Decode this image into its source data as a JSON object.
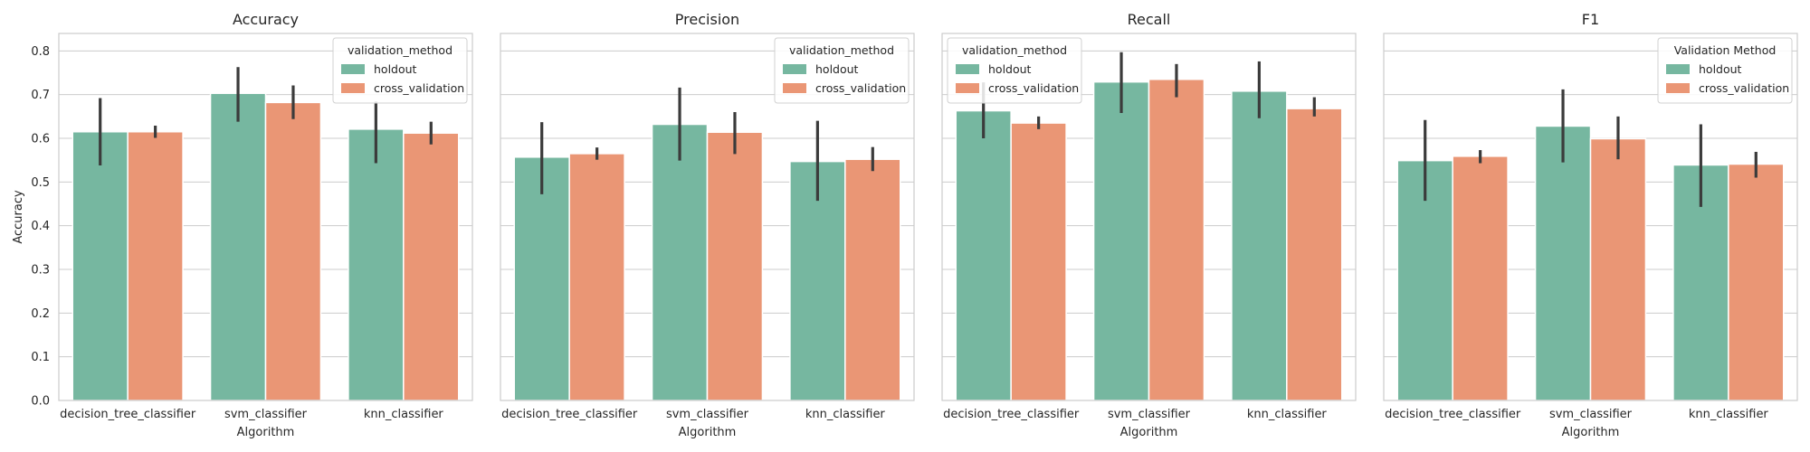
{
  "chart_data": [
    {
      "type": "bar",
      "title": "Accuracy",
      "xlabel": "Algorithm",
      "ylabel": "Accuracy",
      "categories": [
        "decision_tree_classifier",
        "svm_classifier",
        "knn_classifier"
      ],
      "ylim": [
        0,
        0.84
      ],
      "yticks": [
        "0.0",
        "0.1",
        "0.2",
        "0.3",
        "0.4",
        "0.5",
        "0.6",
        "0.7",
        "0.8"
      ],
      "grid": true,
      "legend": {
        "title": "validation_method",
        "placement": "top-right"
      },
      "series": [
        {
          "name": "holdout",
          "color": "#76b7a0",
          "values": [
            0.615,
            0.703,
            0.621
          ],
          "err_low": [
            0.538,
            0.638,
            0.543
          ],
          "err_high": [
            0.692,
            0.763,
            0.684
          ]
        },
        {
          "name": "cross_validation",
          "color": "#ea9675",
          "values": [
            0.615,
            0.682,
            0.612
          ],
          "err_low": [
            0.601,
            0.644,
            0.586
          ],
          "err_high": [
            0.629,
            0.721,
            0.638
          ]
        }
      ]
    },
    {
      "type": "bar",
      "title": "Precision",
      "xlabel": "Algorithm",
      "ylabel": "",
      "categories": [
        "decision_tree_classifier",
        "svm_classifier",
        "knn_classifier"
      ],
      "ylim": [
        0,
        0.84
      ],
      "grid": true,
      "legend": {
        "title": "validation_method",
        "placement": "top-right"
      },
      "series": [
        {
          "name": "holdout",
          "color": "#76b7a0",
          "values": [
            0.557,
            0.632,
            0.547
          ],
          "err_low": [
            0.472,
            0.549,
            0.457
          ],
          "err_high": [
            0.637,
            0.716,
            0.64
          ]
        },
        {
          "name": "cross_validation",
          "color": "#ea9675",
          "values": [
            0.565,
            0.614,
            0.552
          ],
          "err_low": [
            0.551,
            0.564,
            0.525
          ],
          "err_high": [
            0.579,
            0.66,
            0.58
          ]
        }
      ]
    },
    {
      "type": "bar",
      "title": "Recall",
      "xlabel": "Algorithm",
      "ylabel": "",
      "categories": [
        "decision_tree_classifier",
        "svm_classifier",
        "knn_classifier"
      ],
      "ylim": [
        0,
        0.84
      ],
      "grid": true,
      "legend": {
        "title": "validation_method",
        "placement": "top-left"
      },
      "series": [
        {
          "name": "holdout",
          "color": "#76b7a0",
          "values": [
            0.663,
            0.729,
            0.708
          ],
          "err_low": [
            0.6,
            0.658,
            0.646
          ],
          "err_high": [
            0.728,
            0.797,
            0.776
          ]
        },
        {
          "name": "cross_validation",
          "color": "#ea9675",
          "values": [
            0.635,
            0.735,
            0.668
          ],
          "err_low": [
            0.621,
            0.694,
            0.65
          ],
          "err_high": [
            0.65,
            0.77,
            0.694
          ]
        }
      ]
    },
    {
      "type": "bar",
      "title": "F1",
      "xlabel": "Algorithm",
      "ylabel": "",
      "categories": [
        "decision_tree_classifier",
        "svm_classifier",
        "knn_classifier"
      ],
      "ylim": [
        0,
        0.84
      ],
      "grid": true,
      "legend": {
        "title": "Validation Method",
        "placement": "top-right"
      },
      "series": [
        {
          "name": "holdout",
          "color": "#76b7a0",
          "values": [
            0.549,
            0.628,
            0.539
          ],
          "err_low": [
            0.457,
            0.545,
            0.443
          ],
          "err_high": [
            0.642,
            0.712,
            0.632
          ]
        },
        {
          "name": "cross_validation",
          "color": "#ea9675",
          "values": [
            0.559,
            0.599,
            0.541
          ],
          "err_low": [
            0.543,
            0.552,
            0.51
          ],
          "err_high": [
            0.573,
            0.65,
            0.569
          ]
        }
      ]
    }
  ]
}
